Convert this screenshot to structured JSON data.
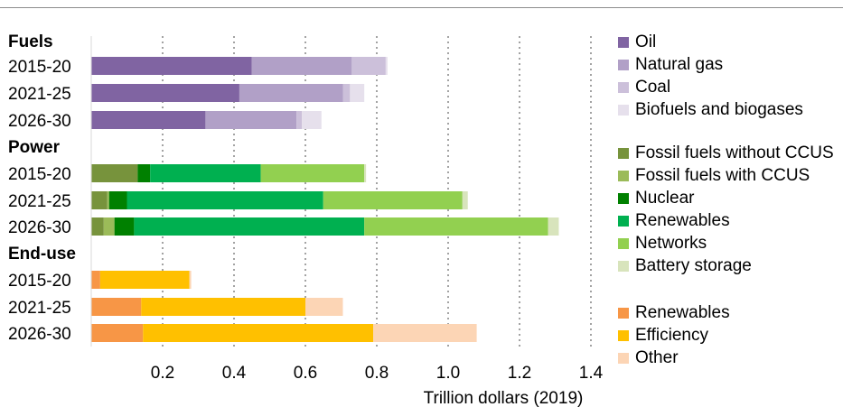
{
  "chart_data": {
    "type": "bar",
    "orientation": "horizontal",
    "stacked": true,
    "xlabel": "Trillion dollars (2019)",
    "xlim": [
      0,
      1.4
    ],
    "x_ticks": [
      "0.2",
      "0.4",
      "0.6",
      "0.8",
      "1.0",
      "1.2",
      "1.4"
    ],
    "x_tick_values": [
      0.2,
      0.4,
      0.6,
      0.8,
      1.0,
      1.2,
      1.4
    ],
    "grid": "vertical-dotted",
    "legend_position": "right",
    "groups": [
      {
        "name": "Fuels",
        "categories": [
          "2015-20",
          "2021-25",
          "2026-30"
        ],
        "series": [
          {
            "name": "Oil",
            "color": "#8064a2",
            "values": [
              0.45,
              0.415,
              0.32
            ]
          },
          {
            "name": "Natural gas",
            "color": "#b1a0c7",
            "values": [
              0.28,
              0.29,
              0.255
            ]
          },
          {
            "name": "Coal",
            "color": "#ccc0da",
            "values": [
              0.095,
              0.02,
              0.015
            ]
          },
          {
            "name": "Biofuels and biogases",
            "color": "#e6e0ec",
            "values": [
              0.005,
              0.04,
              0.055
            ]
          }
        ]
      },
      {
        "name": "Power",
        "categories": [
          "2015-20",
          "2021-25",
          "2026-30"
        ],
        "series": [
          {
            "name": "Fossil fuels without CCUS",
            "color": "#77933c",
            "values": [
              0.13,
              0.045,
              0.035
            ]
          },
          {
            "name": "Fossil fuels with CCUS",
            "color": "#9bbb59",
            "values": [
              0.0,
              0.005,
              0.03
            ]
          },
          {
            "name": "Nuclear",
            "color": "#008000",
            "values": [
              0.035,
              0.05,
              0.055
            ]
          },
          {
            "name": "Renewables",
            "color": "#00b050",
            "values": [
              0.31,
              0.55,
              0.645
            ]
          },
          {
            "name": "Networks",
            "color": "#92d050",
            "values": [
              0.29,
              0.39,
              0.515
            ]
          },
          {
            "name": "Battery storage",
            "color": "#d8e4bc",
            "values": [
              0.005,
              0.015,
              0.03
            ]
          }
        ]
      },
      {
        "name": "End-use",
        "categories": [
          "2015-20",
          "2021-25",
          "2026-30"
        ],
        "series": [
          {
            "name": "Renewables",
            "color": "#f79646",
            "values": [
              0.025,
              0.14,
              0.145
            ]
          },
          {
            "name": "Efficiency",
            "color": "#ffc000",
            "values": [
              0.25,
              0.46,
              0.645
            ]
          },
          {
            "name": "Other",
            "color": "#fcd5b5",
            "values": [
              0.005,
              0.105,
              0.29
            ]
          }
        ]
      }
    ]
  }
}
